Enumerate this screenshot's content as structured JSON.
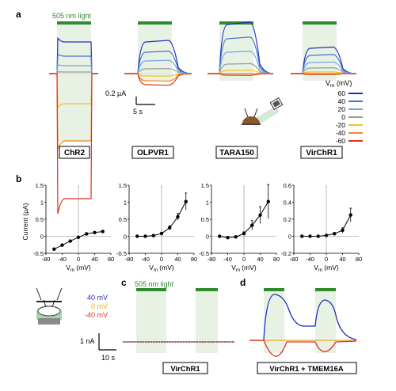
{
  "panel_letters": {
    "a": "a",
    "b": "b",
    "c": "c",
    "d": "d"
  },
  "panel_a": {
    "light_label": "505 nm light",
    "scale_current": "0.2 µA",
    "scale_time": "5 s",
    "legend_title": "V",
    "legend_title_sub": "m",
    "legend_title_unit": " (mV)",
    "voltages": [
      "60",
      "40",
      "20",
      "0",
      "-20",
      "-40",
      "-60"
    ],
    "voltage_colors": [
      "#1f2fbf",
      "#3f73cf",
      "#6fa6dc",
      "#9a9a9a",
      "#f2c21e",
      "#ef8a1e",
      "#e0321e"
    ],
    "constructs": [
      "ChR2",
      "OLPVR1",
      "TARA150",
      "VirChR1"
    ],
    "light_bar_color": "#2e8b2e",
    "light_shade_color": "#d8ead2"
  },
  "panel_b": {
    "ylabel": "Current (µA)",
    "xlabel": "V",
    "xlabel_sub": "m",
    "xlabel_unit": " (mV)",
    "chart_data": [
      {
        "type": "line",
        "name": "ChR2",
        "x": [
          -60,
          -40,
          -20,
          0,
          20,
          40,
          60
        ],
        "y": [
          -0.38,
          -0.26,
          -0.14,
          -0.03,
          0.07,
          0.11,
          0.14
        ],
        "ylim": [
          -0.5,
          1.5
        ],
        "yticks": [
          "-0.5",
          "0",
          "0.5",
          "1",
          "1.5"
        ],
        "xticks": [
          "-80",
          "-40",
          "0",
          "40",
          "80"
        ]
      },
      {
        "type": "line",
        "name": "OLPVR1",
        "x": [
          -60,
          -40,
          -20,
          0,
          20,
          40,
          60
        ],
        "y": [
          0.0,
          0.0,
          0.02,
          0.08,
          0.25,
          0.57,
          1.02
        ],
        "err": [
          0.02,
          0.02,
          0.03,
          0.04,
          0.06,
          0.1,
          0.25
        ],
        "ylim": [
          -0.5,
          1.5
        ],
        "yticks": [
          "-0.5",
          "0",
          "0.5",
          "1",
          "1.5"
        ],
        "xticks": [
          "-80",
          "-40",
          "0",
          "40",
          "80"
        ]
      },
      {
        "type": "line",
        "name": "TARA150",
        "x": [
          -60,
          -40,
          -20,
          0,
          20,
          40,
          60
        ],
        "y": [
          0.0,
          -0.04,
          -0.02,
          0.08,
          0.32,
          0.62,
          1.02
        ],
        "err": [
          0.02,
          0.02,
          0.03,
          0.05,
          0.14,
          0.25,
          0.5
        ],
        "ylim": [
          -0.5,
          1.5
        ],
        "yticks": [
          "-0.5",
          "0",
          "0.5",
          "1",
          "1.5"
        ],
        "xticks": [
          "-80",
          "-40",
          "0",
          "40",
          "80"
        ]
      },
      {
        "type": "line",
        "name": "VirChR1",
        "x": [
          -60,
          -40,
          -20,
          0,
          20,
          40,
          60
        ],
        "y": [
          0.0,
          0.0,
          0.0,
          0.01,
          0.03,
          0.07,
          0.25
        ],
        "err": [
          0.005,
          0.005,
          0.005,
          0.01,
          0.015,
          0.03,
          0.08
        ],
        "ylim": [
          -0.2,
          0.6
        ],
        "yticks": [
          "-0.2",
          "0",
          "0.2",
          "0.4",
          "0.6"
        ],
        "xticks": [
          "-80",
          "-40",
          "0",
          "40",
          "80"
        ]
      }
    ]
  },
  "panel_c": {
    "light_label": "505 nm light",
    "legend": [
      {
        "label": "40 mV",
        "color": "#1f2fbf"
      },
      {
        "label": "0 mV",
        "color": "#f2a51e"
      },
      {
        "label": "-40 mV",
        "color": "#e0321e"
      }
    ],
    "scale_current": "1 nA",
    "scale_time": "10 s",
    "construct": "VirChR1"
  },
  "panel_d": {
    "construct": "VirChR1 + TMEM16A"
  }
}
